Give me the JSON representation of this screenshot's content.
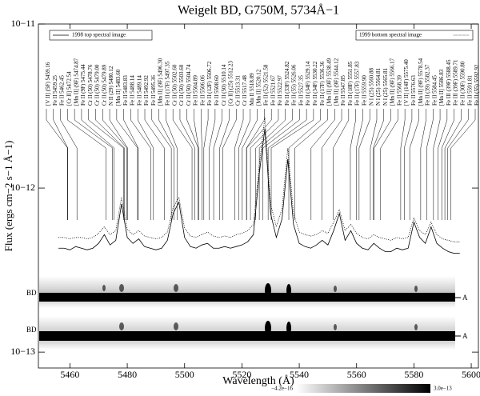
{
  "chart_data": {
    "type": "line",
    "title": "Weigelt BD, G750M, 5734Å−1",
    "x_label": "Wavelength (Å)",
    "y_label": "Flux (ergs cm−2 s−1 Å−1)",
    "log_y": true,
    "xlim": [
      5449,
      5602.5
    ],
    "xticks": [
      5460,
      5480,
      5500,
      5520,
      5540,
      5560,
      5580,
      5600
    ],
    "ylim": [
      8e-14,
      1e-11
    ],
    "yticks": [
      {
        "value": 1e-13,
        "label": "10−13"
      },
      {
        "value": 1e-12,
        "label": "10−12"
      },
      {
        "value": 1e-11,
        "label": "10−11"
      }
    ],
    "x": [
      5456,
      5458,
      5460,
      5462,
      5464,
      5466,
      5468,
      5470,
      5472,
      5474,
      5476,
      5478,
      5480,
      5482,
      5484,
      5486,
      5488,
      5490,
      5492,
      5494,
      5496,
      5498,
      5500,
      5502,
      5504,
      5506,
      5508,
      5510,
      5512,
      5514,
      5516,
      5518,
      5520,
      5522,
      5524,
      5526,
      5528,
      5530,
      5532,
      5534,
      5536,
      5538,
      5540,
      5542,
      5544,
      5546,
      5548,
      5550,
      5552,
      5554,
      5556,
      5558,
      5560,
      5562,
      5564,
      5566,
      5568,
      5570,
      5572,
      5574,
      5576,
      5578,
      5580,
      5582,
      5584,
      5586,
      5588,
      5590,
      5592,
      5594,
      5596
    ],
    "series": [
      {
        "name": "1998 top spectral image",
        "color": "#000000",
        "dash": "solid",
        "values": [
          4.3e-13,
          4.3e-13,
          4.2e-13,
          4.4e-13,
          4.3e-13,
          4.2e-13,
          4.3e-13,
          4.6e-13,
          5.2e-13,
          4.5e-13,
          4.8e-13,
          8e-13,
          5e-13,
          4.6e-13,
          4.9e-13,
          4.4e-13,
          4.3e-13,
          4.2e-13,
          4.3e-13,
          4.8e-13,
          7e-13,
          8.2e-13,
          5e-13,
          4.4e-13,
          4.3e-13,
          4.5e-13,
          4.6e-13,
          4.3e-13,
          4.3e-13,
          4.4e-13,
          4.3e-13,
          4.4e-13,
          4.5e-13,
          4.7e-13,
          5.2e-13,
          1.2e-12,
          2.3e-12,
          7e-13,
          5e-13,
          6.5e-13,
          1.5e-12,
          6e-13,
          4.6e-13,
          4.4e-13,
          4.3e-13,
          4.5e-13,
          4.8e-13,
          4.5e-13,
          5.5e-13,
          7e-13,
          4.8e-13,
          5.5e-13,
          4.6e-13,
          4.3e-13,
          4.2e-13,
          4.6e-13,
          4.3e-13,
          4.1e-13,
          4.1e-13,
          4.3e-13,
          4.2e-13,
          4.3e-13,
          6.2e-13,
          5e-13,
          4.6e-13,
          5.8e-13,
          4.6e-13,
          4.3e-13,
          4.1e-13,
          4e-13,
          4e-13
        ]
      },
      {
        "name": "1999 bottom spectral image",
        "color": "#000000",
        "dash": "dotted",
        "values": [
          5e-13,
          5e-13,
          4.9e-13,
          5e-13,
          5e-13,
          4.9e-13,
          5e-13,
          5.3e-13,
          5.8e-13,
          5.2e-13,
          5.5e-13,
          8.8e-13,
          5.6e-13,
          5.2e-13,
          5.5e-13,
          5.1e-13,
          5e-13,
          4.9e-13,
          5e-13,
          5.4e-13,
          7.6e-13,
          8.8e-13,
          5.7e-13,
          5.1e-13,
          5e-13,
          5.2e-13,
          5.4e-13,
          5.1e-13,
          5e-13,
          5.1e-13,
          5e-13,
          5.2e-13,
          5.3e-13,
          5.5e-13,
          6e-13,
          1.35e-12,
          2.7e-12,
          8e-13,
          5.8e-13,
          7.5e-13,
          1.75e-12,
          7e-13,
          5.4e-13,
          5.2e-13,
          5.1e-13,
          5.2e-13,
          5.5e-13,
          5.3e-13,
          6.2e-13,
          7.4e-13,
          5.5e-13,
          6e-13,
          5.3e-13,
          5e-13,
          4.9e-13,
          5.2e-13,
          5e-13,
          4.9e-13,
          4.8e-13,
          5e-13,
          4.9e-13,
          5e-13,
          6.6e-13,
          5.5e-13,
          5.2e-13,
          6.2e-13,
          5.2e-13,
          4.9e-13,
          4.8e-13,
          4.7e-13,
          4.7e-13
        ]
      }
    ],
    "line_ids": [
      "[V II] (5F) 5459.16",
      "Fe II 5459.25",
      "Fe II 5462.45",
      "[Cr II] 5472.54",
      "[Mn II] (9F) 5474.87",
      "Fe II (9F) 5475.44",
      "Cr II (50) 5478.76",
      "Cr II (50) 5479.00",
      "Cr II (50) 5479.89",
      "N II (29) 5480.12",
      "[Mn II] 5483.60",
      "Fe II 5483.83",
      "Fe II 5488.14",
      "Fe II 5489.14",
      "Fe II 5492.92",
      "Fe II 5495.36",
      "[Mn II] (9F) 5496.30",
      "Fe II (17F) 5497.35",
      "Cr II (50) 5502.60",
      "Cr II (50) 5503.60",
      "Cr II (50) 5504.74",
      "Fe II 5504.89",
      "Fe II 5506.06",
      "Fe II (12F) 5506.72",
      "Fe II 5508.60",
      "Cr II (50) 5510.14",
      "[Cr II] (25) 5512.23",
      "Cr II 5513.31",
      "Cr II 5517.48",
      "Mn II 5518.89",
      "[Mn II] 5520.12",
      "Fe II (52) 5521.58",
      "Fe II 5521.67",
      "Fe II 5522.97",
      "Fe II (33F) 5524.82",
      "Fe II (55) 5526.06",
      "Fe II 5527.35",
      "Fe II (34F) 5529.14",
      "Fe II (34F) 5530.22",
      "Fe II (17F) 5536.36",
      "[Mn II] (9F) 5538.49",
      "[Mn II] (9F) 5544.12",
      "Fe II 5547.85",
      "Fe II (18F) 5551.85",
      "Fe II (17F) 5557.83",
      "Fe II 5559.90",
      "N I (25) 5560.88",
      "N I (25) 5564.81",
      "N I (25) 5565.81",
      "[Mn II] (9F) 5566.17",
      "Fe II 5568.39",
      "[V II] (14F) 5575.40",
      "Fe II 5576.63",
      "[Mn II] (9F) 5578.54",
      "Fe II (39) 5582.37",
      "Fe II 5584.45",
      "[Mn II] 5586.83",
      "Fe III (39F) 5588.45",
      "Fe III (39F) 5589.71",
      "Fe II (30F) 5590.80",
      "Fe II 5591.81",
      "Fe II (55) 5592.92"
    ],
    "spectral_images": [
      {
        "left_label": "BD",
        "right_label": "A"
      },
      {
        "left_label": "BD",
        "right_label": "A"
      }
    ],
    "colorbar": {
      "min": {
        "value": -4.2e-16,
        "label": "−4.2e−16"
      },
      "max": {
        "value": 3e-13,
        "label": "3.0e−13"
      }
    }
  }
}
